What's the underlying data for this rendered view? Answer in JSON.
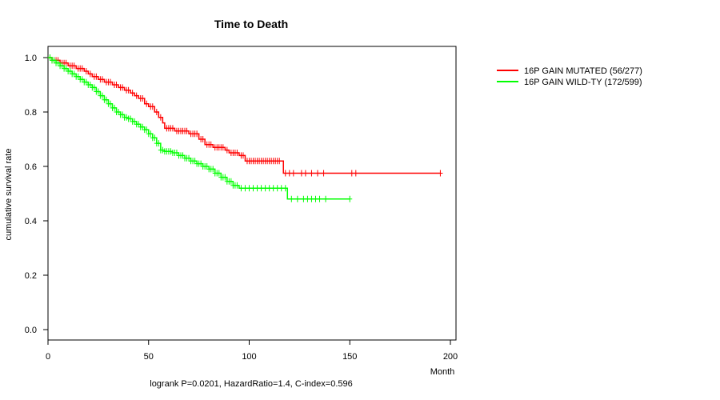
{
  "chart_data": {
    "type": "line",
    "subtype": "kaplan-meier",
    "title": "Time to Death",
    "xlabel": "Month",
    "ylabel": "cumulative survival rate",
    "xlim": [
      0,
      200
    ],
    "ylim": [
      0,
      1
    ],
    "xticks": [
      "0",
      "50",
      "100",
      "150",
      "200"
    ],
    "yticks": [
      "0.0",
      "0.2",
      "0.4",
      "0.6",
      "0.8",
      "1.0"
    ],
    "xtick_values": [
      0,
      50,
      100,
      150,
      200
    ],
    "ytick_values": [
      0,
      0.2,
      0.4,
      0.6,
      0.8,
      1.0
    ],
    "legend_position": "top-right (outside plot)",
    "footer": "logrank P=0.0201, HazardRatio=1.4, C-index=0.596",
    "series": [
      {
        "name": "16P GAIN MUTATED (56/277)",
        "color": "#ff0000",
        "steps": [
          [
            0,
            1.0
          ],
          [
            2,
            0.99
          ],
          [
            6,
            0.98
          ],
          [
            10,
            0.97
          ],
          [
            14,
            0.96
          ],
          [
            18,
            0.95
          ],
          [
            20,
            0.94
          ],
          [
            22,
            0.93
          ],
          [
            25,
            0.92
          ],
          [
            28,
            0.91
          ],
          [
            32,
            0.9
          ],
          [
            35,
            0.89
          ],
          [
            38,
            0.88
          ],
          [
            41,
            0.87
          ],
          [
            43,
            0.86
          ],
          [
            45,
            0.85
          ],
          [
            48,
            0.83
          ],
          [
            50,
            0.82
          ],
          [
            53,
            0.8
          ],
          [
            55,
            0.78
          ],
          [
            57,
            0.76
          ],
          [
            58,
            0.74
          ],
          [
            63,
            0.73
          ],
          [
            70,
            0.72
          ],
          [
            75,
            0.7
          ],
          [
            78,
            0.68
          ],
          [
            82,
            0.67
          ],
          [
            88,
            0.66
          ],
          [
            90,
            0.65
          ],
          [
            95,
            0.64
          ],
          [
            98,
            0.62
          ],
          [
            117,
            0.575
          ],
          [
            195,
            0.575
          ]
        ],
        "censor_x": [
          1,
          2,
          3,
          4,
          5,
          7,
          8,
          9,
          11,
          12,
          13,
          15,
          16,
          17,
          19,
          21,
          23,
          24,
          26,
          27,
          29,
          30,
          31,
          33,
          34,
          36,
          37,
          39,
          40,
          42,
          44,
          46,
          47,
          49,
          51,
          52,
          54,
          56,
          59,
          60,
          61,
          62,
          64,
          65,
          66,
          67,
          68,
          69,
          71,
          72,
          73,
          74,
          76,
          77,
          79,
          80,
          81,
          83,
          84,
          85,
          86,
          87,
          89,
          91,
          92,
          93,
          94,
          96,
          97,
          99,
          100,
          101,
          102,
          103,
          104,
          105,
          106,
          107,
          108,
          109,
          110,
          111,
          112,
          113,
          114,
          115,
          118,
          120,
          122,
          126,
          128,
          131,
          134,
          137,
          151,
          153,
          195
        ]
      },
      {
        "name": "16P GAIN WILD-TY (172/599)",
        "color": "#00ff00",
        "steps": [
          [
            0,
            1.0
          ],
          [
            2,
            0.99
          ],
          [
            4,
            0.98
          ],
          [
            6,
            0.97
          ],
          [
            8,
            0.96
          ],
          [
            10,
            0.95
          ],
          [
            12,
            0.94
          ],
          [
            14,
            0.93
          ],
          [
            16,
            0.92
          ],
          [
            18,
            0.91
          ],
          [
            20,
            0.9
          ],
          [
            22,
            0.89
          ],
          [
            24,
            0.875
          ],
          [
            26,
            0.86
          ],
          [
            28,
            0.845
          ],
          [
            30,
            0.83
          ],
          [
            32,
            0.815
          ],
          [
            34,
            0.8
          ],
          [
            36,
            0.79
          ],
          [
            38,
            0.78
          ],
          [
            40,
            0.775
          ],
          [
            42,
            0.765
          ],
          [
            44,
            0.755
          ],
          [
            46,
            0.745
          ],
          [
            48,
            0.735
          ],
          [
            50,
            0.72
          ],
          [
            52,
            0.705
          ],
          [
            54,
            0.685
          ],
          [
            56,
            0.66
          ],
          [
            58,
            0.655
          ],
          [
            62,
            0.65
          ],
          [
            65,
            0.64
          ],
          [
            68,
            0.63
          ],
          [
            71,
            0.62
          ],
          [
            74,
            0.61
          ],
          [
            77,
            0.6
          ],
          [
            80,
            0.59
          ],
          [
            83,
            0.575
          ],
          [
            86,
            0.56
          ],
          [
            89,
            0.545
          ],
          [
            92,
            0.53
          ],
          [
            95,
            0.52
          ],
          [
            119,
            0.48
          ],
          [
            150,
            0.48
          ]
        ],
        "censor_x": [
          1,
          2,
          3,
          4,
          5,
          6,
          7,
          8,
          9,
          10,
          11,
          12,
          13,
          14,
          15,
          16,
          17,
          18,
          19,
          20,
          21,
          22,
          23,
          24,
          25,
          26,
          27,
          28,
          29,
          30,
          31,
          32,
          33,
          34,
          35,
          36,
          37,
          38,
          39,
          40,
          41,
          42,
          43,
          44,
          45,
          46,
          47,
          48,
          49,
          50,
          51,
          52,
          53,
          54,
          55,
          56,
          57,
          58,
          59,
          60,
          61,
          62,
          63,
          64,
          65,
          66,
          67,
          68,
          69,
          70,
          71,
          72,
          73,
          74,
          75,
          76,
          77,
          78,
          79,
          80,
          81,
          82,
          83,
          84,
          85,
          86,
          87,
          88,
          89,
          90,
          91,
          92,
          93,
          94,
          96,
          98,
          100,
          102,
          104,
          106,
          108,
          110,
          112,
          114,
          116,
          118,
          121,
          124,
          127,
          129,
          131,
          133,
          135,
          138,
          150
        ]
      }
    ]
  }
}
